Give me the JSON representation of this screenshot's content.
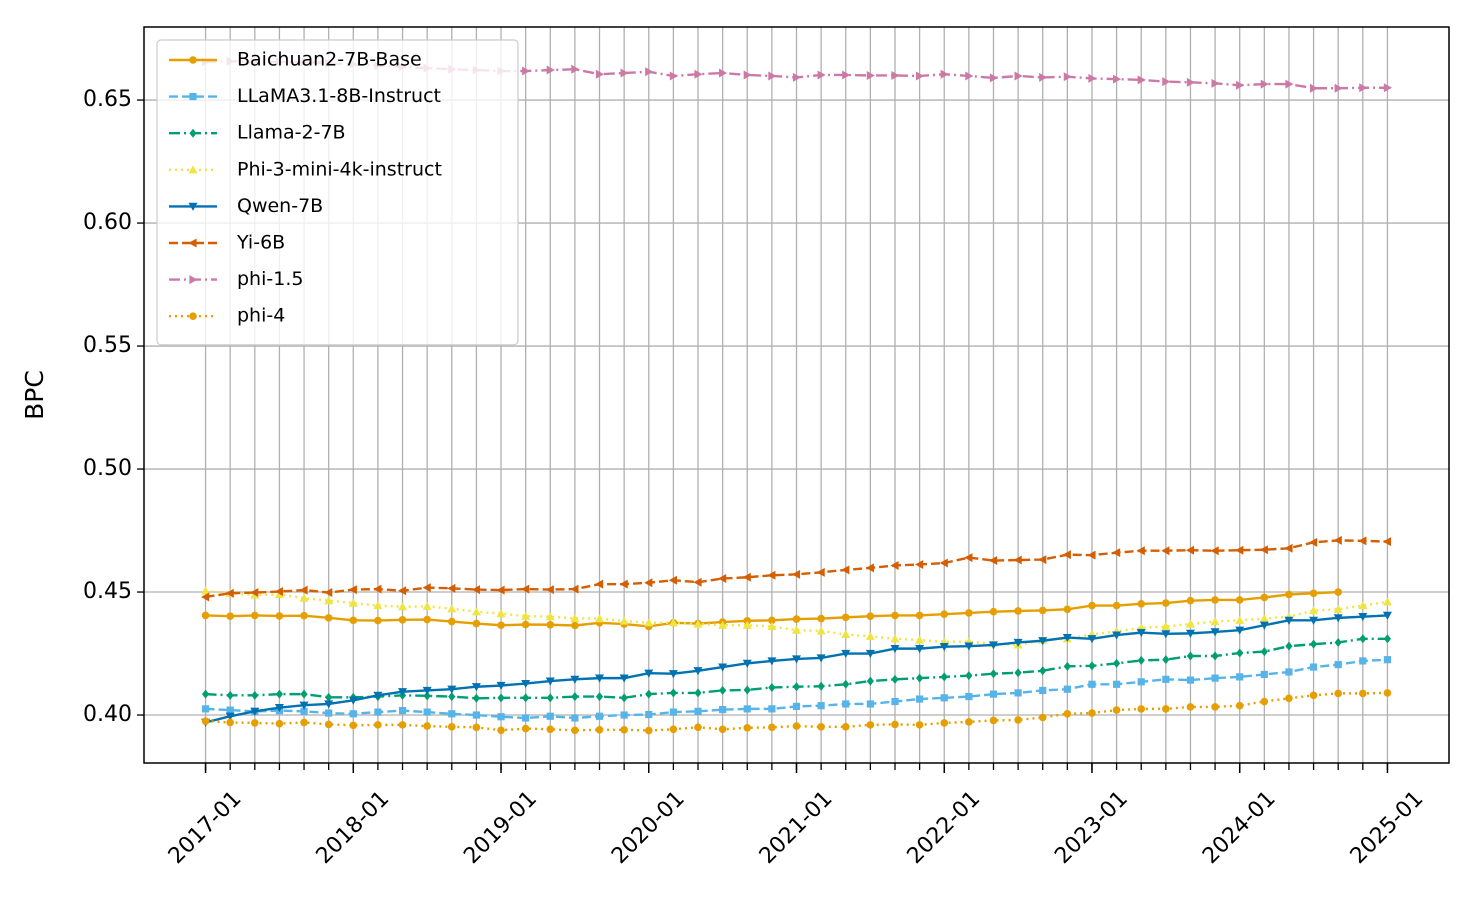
{
  "chart_data": {
    "type": "line",
    "y_label": "BPC",
    "x": [
      "2017-01",
      "2017-03",
      "2017-05",
      "2017-07",
      "2017-09",
      "2017-11",
      "2018-01",
      "2018-03",
      "2018-05",
      "2018-07",
      "2018-09",
      "2018-11",
      "2019-01",
      "2019-03",
      "2019-05",
      "2019-07",
      "2019-09",
      "2019-11",
      "2020-01",
      "2020-03",
      "2020-05",
      "2020-07",
      "2020-09",
      "2020-11",
      "2021-01",
      "2021-03",
      "2021-05",
      "2021-07",
      "2021-09",
      "2021-11",
      "2022-01",
      "2022-03",
      "2022-05",
      "2022-07",
      "2022-09",
      "2022-11",
      "2023-01",
      "2023-03",
      "2023-05",
      "2023-07",
      "2023-09",
      "2023-11",
      "2024-01",
      "2024-03",
      "2024-05",
      "2024-07",
      "2024-09",
      "2024-11",
      "2025-01"
    ],
    "xlim": [
      "2016-08",
      "2025-06"
    ],
    "xticks": [
      "2017-01",
      "2018-01",
      "2019-01",
      "2020-01",
      "2021-01",
      "2022-01",
      "2023-01",
      "2024-01",
      "2025-01"
    ],
    "ylim": [
      0.3805,
      0.6797
    ],
    "yticks": [
      {
        "value": 0.4,
        "label": "0.40"
      },
      0.45,
      {
        "value": 0.5,
        "label": "0.50"
      },
      0.55,
      {
        "value": 0.6,
        "label": "0.60"
      },
      0.65
    ],
    "grid": true,
    "legend": "upper left",
    "series": [
      {
        "name": "Baichuan2-7B-Base",
        "color": "#E69F00",
        "linestyle": "solid",
        "marker": "circle",
        "values": [
          0.4405,
          0.4402,
          0.4405,
          0.4403,
          0.4404,
          0.4395,
          0.4385,
          0.4384,
          0.4387,
          0.4388,
          0.438,
          0.4372,
          0.4365,
          0.4368,
          0.4367,
          0.4364,
          0.4375,
          0.437,
          0.436,
          0.4375,
          0.4372,
          0.4378,
          0.4383,
          0.4385,
          0.439,
          0.4392,
          0.4397,
          0.4402,
          0.4405,
          0.4405,
          0.441,
          0.4415,
          0.442,
          0.4423,
          0.4425,
          0.443,
          0.4445,
          0.4445,
          0.4452,
          0.4455,
          0.4465,
          0.4468,
          0.4468,
          0.4478,
          0.449,
          0.4495,
          0.45,
          null,
          null
        ]
      },
      {
        "name": "LLaMA3.1-8B-Instruct",
        "color": "#56B4E9",
        "linestyle": "dashed",
        "marker": "square",
        "values": [
          0.4025,
          0.402,
          0.4015,
          0.4018,
          0.4015,
          0.4008,
          0.4005,
          0.4012,
          0.4018,
          0.4012,
          0.4005,
          0.4,
          0.3993,
          0.3988,
          0.3995,
          0.3988,
          0.3995,
          0.4,
          0.4002,
          0.4012,
          0.4015,
          0.4022,
          0.4025,
          0.4025,
          0.4035,
          0.4038,
          0.4045,
          0.4045,
          0.4055,
          0.4065,
          0.407,
          0.4075,
          0.4085,
          0.409,
          0.41,
          0.4105,
          0.4125,
          0.4125,
          0.4135,
          0.4145,
          0.4142,
          0.415,
          0.4155,
          0.4165,
          0.4175,
          0.4195,
          0.4205,
          0.422,
          0.4225
        ]
      },
      {
        "name": "Llama-2-7B",
        "color": "#009E73",
        "linestyle": "dashdot",
        "marker": "diamond",
        "values": [
          0.4085,
          0.408,
          0.408,
          0.4085,
          0.4085,
          0.4072,
          0.4072,
          0.4075,
          0.408,
          0.4078,
          0.4075,
          0.4068,
          0.407,
          0.407,
          0.407,
          0.4075,
          0.4075,
          0.407,
          0.4085,
          0.409,
          0.409,
          0.41,
          0.4102,
          0.4112,
          0.4115,
          0.4117,
          0.4125,
          0.4138,
          0.4145,
          0.415,
          0.4155,
          0.416,
          0.4168,
          0.4172,
          0.418,
          0.4198,
          0.42,
          0.421,
          0.4222,
          0.4225,
          0.424,
          0.424,
          0.4252,
          0.4258,
          0.428,
          0.4288,
          0.4295,
          0.431,
          0.431
        ]
      },
      {
        "name": "Phi-3-mini-4k-instruct",
        "color": "#F0E442",
        "linestyle": "dotted",
        "marker": "triangle-up",
        "values": [
          0.4505,
          0.4495,
          0.4488,
          0.449,
          0.4475,
          0.4465,
          0.4455,
          0.4445,
          0.444,
          0.4442,
          0.4432,
          0.442,
          0.4412,
          0.4402,
          0.44,
          0.4393,
          0.4392,
          0.4382,
          0.4375,
          0.4375,
          0.437,
          0.4365,
          0.4365,
          0.436,
          0.4345,
          0.4342,
          0.4328,
          0.432,
          0.431,
          0.4305,
          0.4298,
          0.4298,
          0.429,
          0.4285,
          0.4305,
          0.431,
          0.4328,
          0.434,
          0.4355,
          0.436,
          0.437,
          0.438,
          0.4385,
          0.4392,
          0.44,
          0.4425,
          0.443,
          0.4445,
          0.446
        ]
      },
      {
        "name": "Qwen-7B",
        "color": "#0072B2",
        "linestyle": "solid",
        "marker": "triangle-down",
        "values": [
          0.397,
          0.3995,
          0.4015,
          0.403,
          0.404,
          0.4045,
          0.406,
          0.408,
          0.4095,
          0.41,
          0.4105,
          0.4115,
          0.412,
          0.4128,
          0.4138,
          0.4145,
          0.415,
          0.415,
          0.417,
          0.4168,
          0.418,
          0.4195,
          0.421,
          0.422,
          0.4228,
          0.4232,
          0.425,
          0.425,
          0.427,
          0.427,
          0.4278,
          0.428,
          0.4285,
          0.4295,
          0.4302,
          0.4315,
          0.431,
          0.4325,
          0.4335,
          0.433,
          0.4332,
          0.4338,
          0.4345,
          0.4365,
          0.4385,
          0.4385,
          0.4395,
          0.44,
          0.4405
        ]
      },
      {
        "name": "Yi-6B",
        "color": "#D55E00",
        "linestyle": "dashed",
        "marker": "triangle-left",
        "values": [
          0.448,
          0.4495,
          0.4498,
          0.4502,
          0.4508,
          0.4498,
          0.451,
          0.4512,
          0.4505,
          0.4518,
          0.4515,
          0.451,
          0.4508,
          0.4512,
          0.451,
          0.4512,
          0.4532,
          0.4532,
          0.4538,
          0.4548,
          0.454,
          0.4555,
          0.456,
          0.4568,
          0.4572,
          0.458,
          0.459,
          0.4598,
          0.4608,
          0.4612,
          0.4618,
          0.464,
          0.4628,
          0.463,
          0.4632,
          0.4652,
          0.465,
          0.466,
          0.4668,
          0.4668,
          0.467,
          0.4668,
          0.467,
          0.4672,
          0.4678,
          0.4702,
          0.471,
          0.4708,
          0.4705
        ]
      },
      {
        "name": "phi-1.5",
        "color": "#CC79A7",
        "linestyle": "dashdot",
        "marker": "triangle-right",
        "values": [
          0.6655,
          0.6658,
          0.6655,
          0.6655,
          0.6655,
          0.665,
          0.6645,
          0.664,
          0.6635,
          0.663,
          0.6625,
          0.6622,
          0.6618,
          0.6618,
          0.6622,
          0.6625,
          0.6605,
          0.661,
          0.6615,
          0.6598,
          0.6605,
          0.661,
          0.6602,
          0.6598,
          0.6592,
          0.6602,
          0.6602,
          0.66,
          0.66,
          0.6598,
          0.6605,
          0.6598,
          0.659,
          0.6598,
          0.6592,
          0.6595,
          0.6588,
          0.6585,
          0.6582,
          0.6575,
          0.6572,
          0.6568,
          0.656,
          0.6565,
          0.6565,
          0.6548,
          0.6548,
          0.655,
          0.655
        ]
      },
      {
        "name": "phi-4",
        "color": "#E69F00",
        "linestyle": "dotted",
        "marker": "circle",
        "values": [
          0.3975,
          0.397,
          0.3968,
          0.3965,
          0.397,
          0.3962,
          0.3958,
          0.396,
          0.396,
          0.3955,
          0.3952,
          0.395,
          0.3938,
          0.3945,
          0.3942,
          0.3938,
          0.394,
          0.394,
          0.3937,
          0.3942,
          0.395,
          0.3942,
          0.3948,
          0.395,
          0.3955,
          0.3952,
          0.3952,
          0.396,
          0.3962,
          0.396,
          0.3968,
          0.3972,
          0.3978,
          0.398,
          0.399,
          0.4005,
          0.4008,
          0.402,
          0.4025,
          0.4025,
          0.4033,
          0.4033,
          0.4038,
          0.4055,
          0.4068,
          0.408,
          0.4088,
          0.4088,
          0.409
        ]
      }
    ]
  }
}
